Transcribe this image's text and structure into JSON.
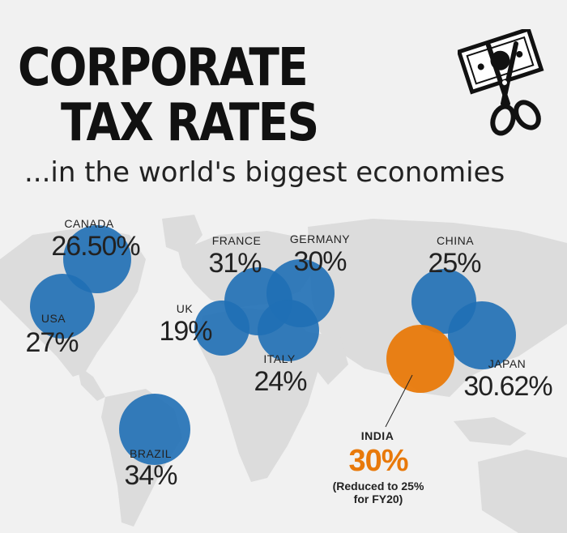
{
  "title_line1": "CORPORATE",
  "title_line2": "TAX RATES",
  "subtitle": "...in the world's biggest economies",
  "icon": "money-scissors-icon",
  "colors": {
    "bubble": "#1f6fb5",
    "highlight": "#e8790a",
    "map": "#dcdcdc",
    "background": "#f1f1f1"
  },
  "chart_data": {
    "type": "bubble-map",
    "title": "CORPORATE TAX RATES",
    "subtitle": "...in the world's biggest economies",
    "countries": [
      {
        "key": "canada",
        "name": "CANADA",
        "rate": "26.50%",
        "value": 26.5
      },
      {
        "key": "usa",
        "name": "USA",
        "rate": "27%",
        "value": 27
      },
      {
        "key": "brazil",
        "name": "BRAZIL",
        "rate": "34%",
        "value": 34
      },
      {
        "key": "uk",
        "name": "UK",
        "rate": "19%",
        "value": 19
      },
      {
        "key": "france",
        "name": "FRANCE",
        "rate": "31%",
        "value": 31
      },
      {
        "key": "germany",
        "name": "GERMANY",
        "rate": "30%",
        "value": 30
      },
      {
        "key": "italy",
        "name": "ITALY",
        "rate": "24%",
        "value": 24
      },
      {
        "key": "china",
        "name": "CHINA",
        "rate": "25%",
        "value": 25
      },
      {
        "key": "japan",
        "name": "JAPAN",
        "rate": "30.62%",
        "value": 30.62
      },
      {
        "key": "india",
        "name": "INDIA",
        "rate": "30%",
        "value": 30,
        "highlight": true,
        "note_line1": "(Reduced to 25%",
        "note_line2": "for FY20)"
      }
    ]
  }
}
